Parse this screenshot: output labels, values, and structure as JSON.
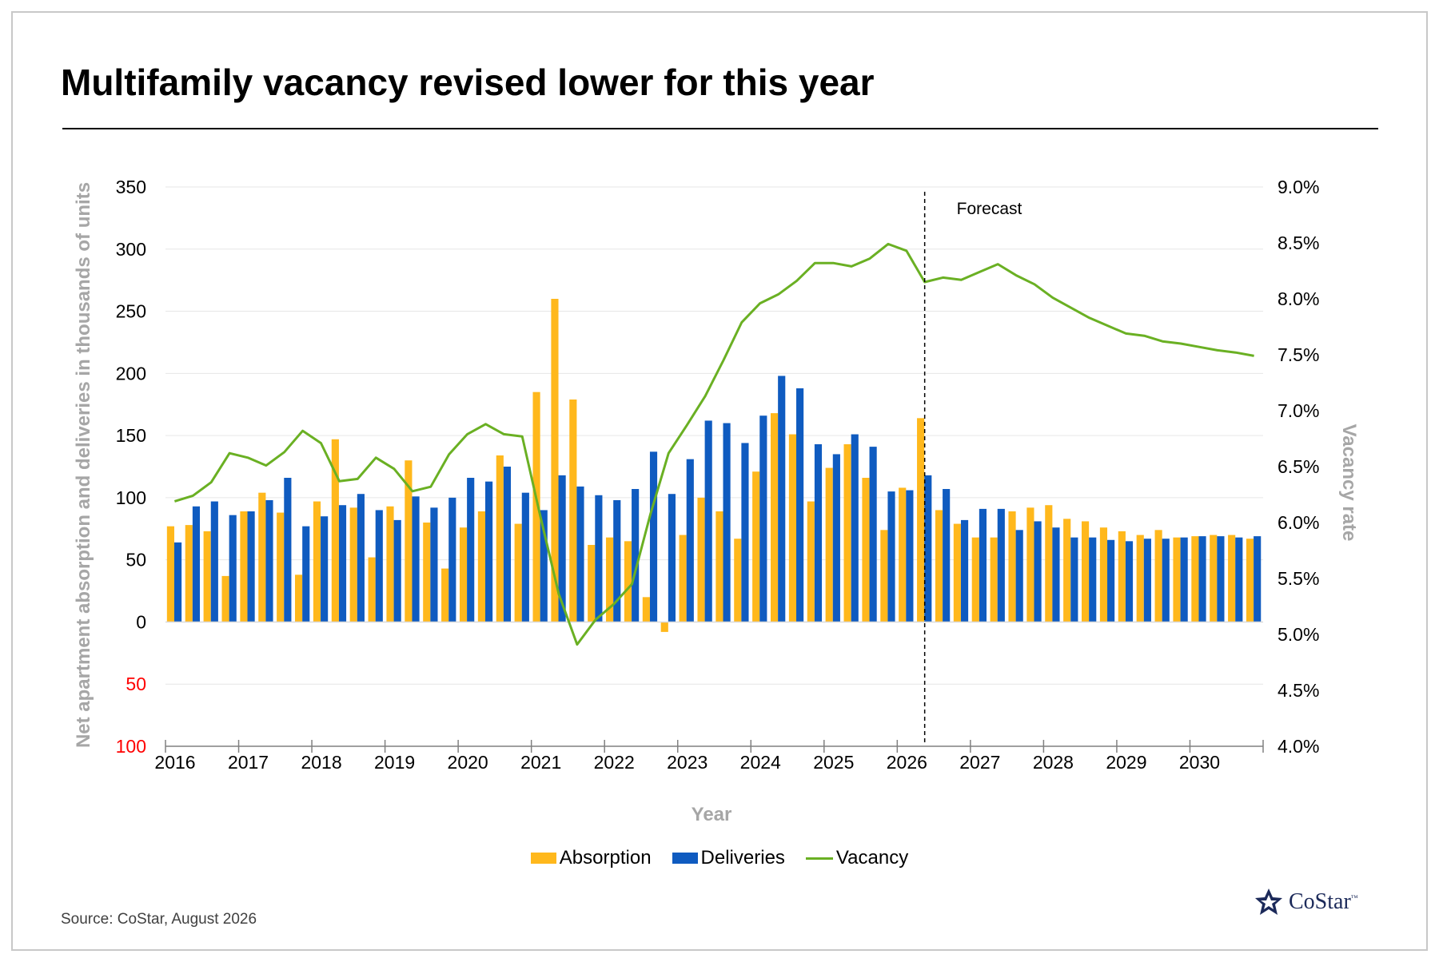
{
  "title": "Multifamily vacancy revised lower for this year",
  "source": "Source: CoStar, August 2026",
  "logo_text": "CoStar",
  "logo_tm": "™",
  "colors": {
    "absorption": "#ffb81c",
    "deliveries": "#0f5bc0",
    "vacancy": "#6ab023",
    "negative_tick": "#ff0000",
    "axis_title": "#a6a6a6",
    "grid": "#e6e6e6"
  },
  "chart_data": {
    "type": "bar",
    "title": "Multifamily vacancy revised lower for this year",
    "xlabel": "Year",
    "ylabel": "Net apartment absorption and deliveries in thousands of units",
    "y2label": "Vacancy rate",
    "ylim": [
      -100,
      350
    ],
    "y2lim": [
      4.0,
      9.0
    ],
    "y_tick_labels": [
      "350",
      "300",
      "250",
      "200",
      "150",
      "100",
      "50",
      "0",
      "50",
      "100"
    ],
    "y_tick_values": [
      350,
      300,
      250,
      200,
      150,
      100,
      50,
      0,
      -50,
      -100
    ],
    "y2_tick_labels": [
      "9.0%",
      "8.5%",
      "8.0%",
      "7.5%",
      "7.0%",
      "6.5%",
      "6.0%",
      "5.5%",
      "5.0%",
      "4.5%",
      "4.0%"
    ],
    "x_tick_labels": [
      "2016",
      "2017",
      "2018",
      "2019",
      "2020",
      "2021",
      "2022",
      "2023",
      "2024",
      "2025",
      "2026",
      "2027",
      "2028",
      "2029",
      "2030"
    ],
    "grid": true,
    "legend_position": "bottom-center",
    "annotation": {
      "text": "Forecast",
      "x_quarter_index": 41.5
    },
    "quarters_per_year": 4,
    "series": [
      {
        "name": "Absorption",
        "type": "bar",
        "values": [
          77,
          78,
          73,
          37,
          89,
          104,
          88,
          38,
          97,
          147,
          92,
          52,
          93,
          130,
          80,
          43,
          76,
          89,
          134,
          79,
          185,
          260,
          179,
          62,
          68,
          65,
          20,
          -8,
          70,
          100,
          89,
          67,
          121,
          168,
          151,
          97,
          124,
          143,
          116,
          74,
          108,
          164,
          90,
          79,
          68,
          68,
          89,
          92,
          94,
          83,
          81,
          76,
          73,
          70,
          74,
          68,
          69,
          70,
          70,
          67
        ]
      },
      {
        "name": "Deliveries",
        "type": "bar",
        "values": [
          64,
          93,
          97,
          86,
          89,
          98,
          116,
          77,
          85,
          94,
          103,
          90,
          82,
          101,
          92,
          100,
          116,
          113,
          125,
          104,
          90,
          118,
          109,
          102,
          98,
          107,
          137,
          103,
          131,
          162,
          160,
          144,
          166,
          198,
          188,
          143,
          135,
          151,
          141,
          105,
          106,
          118,
          107,
          82,
          91,
          91,
          74,
          81,
          76,
          68,
          68,
          66,
          65,
          67,
          67,
          68,
          69,
          69,
          68,
          69
        ]
      },
      {
        "name": "Vacancy",
        "type": "line",
        "values": [
          6.19,
          6.24,
          6.36,
          6.62,
          6.58,
          6.51,
          6.63,
          6.82,
          6.71,
          6.37,
          6.39,
          6.58,
          6.48,
          6.28,
          6.32,
          6.61,
          6.79,
          6.88,
          6.79,
          6.77,
          6.05,
          5.36,
          4.91,
          5.13,
          5.27,
          5.45,
          6.07,
          6.62,
          6.87,
          7.13,
          7.45,
          7.79,
          7.96,
          8.04,
          8.16,
          8.32,
          8.32,
          8.29,
          8.36,
          8.49,
          8.43,
          8.15,
          8.19,
          8.17,
          8.24,
          8.31,
          8.21,
          8.13,
          8.01,
          7.92,
          7.83,
          7.76,
          7.69,
          7.67,
          7.62,
          7.6,
          7.57,
          7.54,
          7.52,
          7.49
        ]
      }
    ]
  }
}
